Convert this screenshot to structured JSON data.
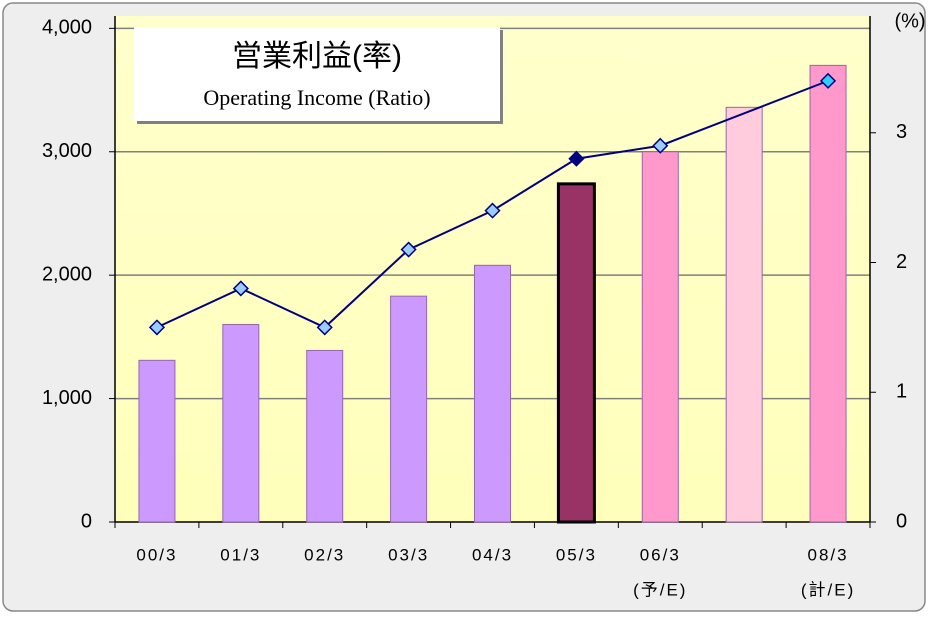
{
  "chart_data": {
    "type": "bar_line",
    "title": "営業利益(率)",
    "subtitle": "Operating Income (Ratio)",
    "y2_label": "(%)",
    "categories": [
      "00/3",
      "01/3",
      "02/3",
      "03/3",
      "04/3",
      "05/3",
      "06/3",
      null,
      "08/3"
    ],
    "category_sublabels": [
      null,
      null,
      null,
      null,
      null,
      null,
      "(予/E)",
      null,
      "(計/E)"
    ],
    "series": [
      {
        "type": "bar",
        "values": [
          1310,
          1600,
          1390,
          1830,
          2080,
          2740,
          3000,
          3360,
          3700
        ],
        "colors": [
          "#cc99ff",
          "#cc99ff",
          "#cc99ff",
          "#cc99ff",
          "#cc99ff",
          "#993366",
          "#ff99cc",
          "#ffccdd",
          "#ff99cc"
        ]
      },
      {
        "type": "line",
        "axis": "y2",
        "color": "#000080",
        "span_gaps": true,
        "values": [
          1.5,
          1.8,
          1.5,
          2.1,
          2.4,
          2.8,
          2.9,
          null,
          3.4
        ],
        "marker_colors": [
          "#99ccff",
          "#99ccff",
          "#99ccff",
          "#99ccff",
          "#99ccff",
          "#000080",
          "#99ccff",
          null,
          "#33ccff"
        ]
      }
    ],
    "ylim": [
      0,
      4100
    ],
    "yticks": [
      0,
      {
        "value": 1000,
        "label": "1,000"
      },
      {
        "value": 2000,
        "label": "2,000"
      },
      {
        "value": 3000,
        "label": "3,000"
      },
      {
        "value": 4000,
        "label": "4,000"
      }
    ],
    "y2lim": [
      0,
      3.9
    ],
    "y2ticks": [
      0,
      1,
      2,
      3
    ],
    "grid": true
  }
}
